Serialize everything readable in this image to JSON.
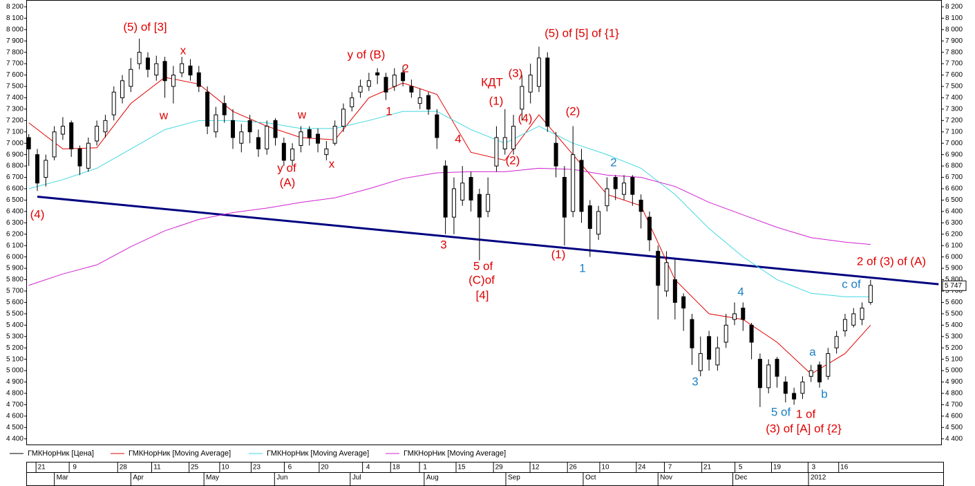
{
  "chart_data": {
    "type": "candlestick",
    "ylim": [
      4350,
      8260
    ],
    "xlim": [
      -0.3,
      107.3
    ],
    "yticks": [
      {
        "value": 8200,
        "label": "8 200"
      },
      {
        "value": 8100,
        "label": "8 100"
      },
      {
        "value": 8000,
        "label": "8 000"
      },
      {
        "value": 7900,
        "label": "7 900"
      },
      {
        "value": 7800,
        "label": "7 800"
      },
      {
        "value": 7700,
        "label": "7 700"
      },
      {
        "value": 7600,
        "label": "7 600"
      },
      {
        "value": 7500,
        "label": "7 500"
      },
      {
        "value": 7400,
        "label": "7 400"
      },
      {
        "value": 7300,
        "label": "7 300"
      },
      {
        "value": 7200,
        "label": "7 200"
      },
      {
        "value": 7100,
        "label": "7 100"
      },
      {
        "value": 7000,
        "label": "7 000"
      },
      {
        "value": 6900,
        "label": "6 900"
      },
      {
        "value": 6800,
        "label": "6 800"
      },
      {
        "value": 6700,
        "label": "6 700"
      },
      {
        "value": 6600,
        "label": "6 600"
      },
      {
        "value": 6500,
        "label": "6 500"
      },
      {
        "value": 6400,
        "label": "6 400"
      },
      {
        "value": 6300,
        "label": "6 300"
      },
      {
        "value": 6200,
        "label": "6 200"
      },
      {
        "value": 6100,
        "label": "6 100"
      },
      {
        "value": 6000,
        "label": "6 000"
      },
      {
        "value": 5900,
        "label": "5 900"
      },
      {
        "value": 5800,
        "label": "5 800"
      },
      {
        "value": 5700,
        "label": "5 700"
      },
      {
        "value": 5600,
        "label": "5 600"
      },
      {
        "value": 5500,
        "label": "5 500"
      },
      {
        "value": 5400,
        "label": "5 400"
      },
      {
        "value": 5300,
        "label": "5 300"
      },
      {
        "value": 5200,
        "label": "5 200"
      },
      {
        "value": 5100,
        "label": "5 100"
      },
      {
        "value": 5000,
        "label": "5 000"
      },
      {
        "value": 4900,
        "label": "4 900"
      },
      {
        "value": 4800,
        "label": "4 800"
      },
      {
        "value": 4700,
        "label": "4 700"
      },
      {
        "value": 4600,
        "label": "4 600"
      },
      {
        "value": 4500,
        "label": "4 500"
      },
      {
        "value": 4400,
        "label": "4 400"
      }
    ],
    "xticks": [
      {
        "value": 1.5,
        "label": "21"
      },
      {
        "value": 5.4,
        "label": "9"
      },
      {
        "value": 11.1,
        "label": "28"
      },
      {
        "value": 15.1,
        "label": "11"
      },
      {
        "value": 19.5,
        "label": "25"
      },
      {
        "value": 23.1,
        "label": "10"
      },
      {
        "value": 26.8,
        "label": "23"
      },
      {
        "value": 30.7,
        "label": "6"
      },
      {
        "value": 34.8,
        "label": "20"
      },
      {
        "value": 39.9,
        "label": "4"
      },
      {
        "value": 43.2,
        "label": "18"
      },
      {
        "value": 46.6,
        "label": "1"
      },
      {
        "value": 50.9,
        "label": "15"
      },
      {
        "value": 55.3,
        "label": "29"
      },
      {
        "value": 59.6,
        "label": "12"
      },
      {
        "value": 64.0,
        "label": "26"
      },
      {
        "value": 67.8,
        "label": "10"
      },
      {
        "value": 72.1,
        "label": "24"
      },
      {
        "value": 75.4,
        "label": "7"
      },
      {
        "value": 79.8,
        "label": "21"
      },
      {
        "value": 83.7,
        "label": "5"
      },
      {
        "value": 88.0,
        "label": "19"
      },
      {
        "value": 92.3,
        "label": "3"
      },
      {
        "value": 95.9,
        "label": "16"
      }
    ],
    "month_ticks": [
      {
        "value": 3.0,
        "label": "Mar"
      },
      {
        "value": 12.0,
        "label": "Apr"
      },
      {
        "value": 20.6,
        "label": "May"
      },
      {
        "value": 28.9,
        "label": "Jun"
      },
      {
        "value": 37.8,
        "label": "Jul"
      },
      {
        "value": 46.5,
        "label": "Aug"
      },
      {
        "value": 56.1,
        "label": "Sep"
      },
      {
        "value": 65.2,
        "label": "Oct"
      },
      {
        "value": 74.0,
        "label": "Nov"
      },
      {
        "value": 82.8,
        "label": "Dec"
      },
      {
        "value": 91.7,
        "label": "2012"
      }
    ],
    "series": [
      {
        "name": "ГМКНорНик [Цена]",
        "color": "#000000",
        "open": [
          7050,
          6900,
          6700,
          6880,
          7080,
          7180,
          6950,
          6780,
          7020,
          7100,
          7250,
          7400,
          7500,
          7700,
          7750,
          7600,
          7720,
          7500,
          7620,
          7680,
          7620,
          7450,
          7100,
          7350,
          7200,
          7000,
          7200,
          7050,
          6950,
          7200,
          7000,
          6850,
          6980,
          7120,
          7080,
          6900,
          7000,
          7150,
          7320,
          7450,
          7500,
          7620,
          7580,
          7500,
          7620,
          7500,
          7350,
          7420,
          7250,
          6800,
          6350,
          6500,
          6700,
          6550,
          6400,
          6800,
          6950,
          6950,
          7300,
          7450,
          7500,
          7750,
          7000,
          6700,
          6400,
          6850,
          6450,
          6200,
          6450,
          6700,
          6550,
          6700,
          6500,
          6350,
          6050,
          5700,
          5800,
          5650,
          5450,
          5000,
          5300,
          5050,
          5250,
          5450,
          5550,
          5400,
          5100,
          4850,
          5100,
          4900,
          4800,
          4800,
          4950,
          5050,
          4950,
          5200,
          5350,
          5400,
          5450,
          5600
        ],
        "high": [
          7080,
          6950,
          6900,
          7150,
          7230,
          7200,
          6980,
          7050,
          7200,
          7250,
          7500,
          7600,
          7750,
          7920,
          7800,
          7770,
          7760,
          7680,
          7760,
          7740,
          7680,
          7500,
          7320,
          7420,
          7300,
          7170,
          7250,
          7120,
          7200,
          7220,
          7050,
          7000,
          7150,
          7150,
          7130,
          7020,
          7200,
          7350,
          7450,
          7560,
          7620,
          7660,
          7620,
          7660,
          7680,
          7560,
          7480,
          7450,
          7300,
          6850,
          6700,
          6800,
          6750,
          6600,
          6700,
          7150,
          7300,
          7250,
          7600,
          7700,
          7850,
          7800,
          7100,
          6800,
          7150,
          6950,
          6500,
          6450,
          6700,
          6720,
          6720,
          6720,
          6550,
          6400,
          6100,
          6050,
          5980,
          5680,
          5500,
          5300,
          5350,
          5300,
          5500,
          5600,
          5600,
          5420,
          5150,
          5100,
          5120,
          4950,
          4850,
          4950,
          5050,
          5080,
          5200,
          5350,
          5500,
          5550,
          5600,
          5800
        ],
        "low": [
          6800,
          6580,
          6620,
          6850,
          7030,
          6880,
          6720,
          6750,
          6980,
          7050,
          7200,
          7350,
          7450,
          7650,
          7580,
          7550,
          7400,
          7350,
          7580,
          7550,
          7450,
          7080,
          7050,
          7180,
          6950,
          6920,
          7000,
          6880,
          6900,
          6980,
          6800,
          6800,
          6920,
          6980,
          6920,
          6850,
          6980,
          7100,
          7280,
          7400,
          7460,
          7520,
          7380,
          7460,
          7500,
          7400,
          7300,
          7250,
          6950,
          6200,
          6200,
          6450,
          6400,
          5970,
          6350,
          6750,
          6900,
          6900,
          7200,
          7350,
          7450,
          7100,
          6700,
          6100,
          6350,
          6300,
          6000,
          6150,
          6400,
          6500,
          6500,
          6450,
          6250,
          6050,
          5450,
          5650,
          5450,
          5350,
          5050,
          4950,
          5000,
          5000,
          5200,
          5400,
          5350,
          5100,
          4680,
          4800,
          4850,
          4720,
          4700,
          4750,
          4900,
          4850,
          4920,
          5150,
          5300,
          5380,
          5400,
          5580
        ],
        "close": [
          6950,
          6650,
          6850,
          7100,
          7150,
          6950,
          6800,
          7000,
          7150,
          7200,
          7450,
          7550,
          7650,
          7800,
          7650,
          7700,
          7550,
          7600,
          7700,
          7600,
          7500,
          7150,
          7250,
          7250,
          7050,
          7100,
          7100,
          6950,
          7150,
          7050,
          6850,
          6950,
          7100,
          7050,
          7000,
          6950,
          7150,
          7300,
          7400,
          7500,
          7550,
          7600,
          7450,
          7600,
          7550,
          7450,
          7400,
          7300,
          7050,
          6350,
          6600,
          6650,
          6500,
          6350,
          6550,
          7050,
          7050,
          7150,
          7500,
          7600,
          7750,
          7150,
          6800,
          6350,
          6900,
          6400,
          6250,
          6400,
          6600,
          6600,
          6650,
          6550,
          6400,
          6150,
          5750,
          5950,
          5600,
          5550,
          5200,
          5150,
          5100,
          5200,
          5400,
          5500,
          5450,
          5250,
          4850,
          5050,
          4950,
          4800,
          4750,
          4900,
          5000,
          4900,
          5150,
          5300,
          5450,
          5500,
          5550,
          5750
        ]
      },
      {
        "name": "ГМКНорНик [Moving Average]",
        "color": "#e00000",
        "x": [
          0,
          4,
          8,
          12,
          16,
          20,
          24,
          28,
          32,
          36,
          40,
          44,
          48,
          52,
          56,
          60,
          64,
          68,
          72,
          76,
          80,
          84,
          88,
          92,
          96,
          99
        ],
        "values": [
          7180,
          6950,
          6960,
          7350,
          7580,
          7520,
          7280,
          7150,
          7050,
          7030,
          7400,
          7530,
          7430,
          6920,
          6850,
          7250,
          6900,
          6550,
          6450,
          5800,
          5500,
          5450,
          5250,
          4970,
          5150,
          5400
        ]
      },
      {
        "name": "ГМКНорНик [Moving Average]",
        "color": "#40d8e0",
        "x": [
          0,
          4,
          8,
          12,
          16,
          20,
          24,
          28,
          32,
          36,
          40,
          44,
          48,
          52,
          56,
          60,
          64,
          68,
          72,
          76,
          80,
          84,
          88,
          92,
          96,
          99
        ],
        "values": [
          6600,
          6680,
          6780,
          6950,
          7120,
          7200,
          7200,
          7180,
          7130,
          7130,
          7200,
          7280,
          7280,
          7120,
          7000,
          7150,
          7000,
          6900,
          6780,
          6550,
          6250,
          6000,
          5800,
          5680,
          5650,
          5650
        ]
      },
      {
        "name": "ГМКНорНик [Moving Average]",
        "color": "#d020d0",
        "x": [
          0,
          4,
          8,
          12,
          16,
          20,
          24,
          28,
          32,
          36,
          40,
          44,
          48,
          52,
          56,
          60,
          64,
          68,
          72,
          76,
          80,
          84,
          88,
          92,
          96,
          99
        ],
        "values": [
          5750,
          5850,
          5930,
          6090,
          6230,
          6330,
          6390,
          6430,
          6480,
          6520,
          6600,
          6690,
          6740,
          6750,
          6750,
          6780,
          6770,
          6720,
          6700,
          6620,
          6480,
          6370,
          6260,
          6170,
          6130,
          6110
        ]
      }
    ],
    "trendline": {
      "color": "#000080",
      "x": [
        1,
        107
      ],
      "values": [
        6530,
        5760
      ]
    },
    "last_price": {
      "value": 5747,
      "label": "5 747"
    },
    "annotations": [
      {
        "text": "(5) of  [3]",
        "color": "#e00000"
      },
      {
        "text": "x",
        "color": "#e00000"
      },
      {
        "text": "w",
        "color": "#e00000"
      },
      {
        "text": "y of  (B)",
        "color": "#e00000"
      },
      {
        "text": "2",
        "color": "#e00000"
      },
      {
        "text": "1",
        "color": "#e00000"
      },
      {
        "text": "КДТ",
        "color": "#e00000"
      },
      {
        "text": "(3)",
        "color": "#e00000"
      },
      {
        "text": "(1)",
        "color": "#e00000"
      },
      {
        "text": "(4)",
        "color": "#e00000"
      },
      {
        "text": "(2)",
        "color": "#e00000"
      },
      {
        "text": "(5) of [5] of {1}",
        "color": "#e00000"
      },
      {
        "text": "(2)",
        "color": "#e00000"
      },
      {
        "text": "w",
        "color": "#e00000"
      },
      {
        "text": "y of",
        "color": "#e00000"
      },
      {
        "text": "(A)",
        "color": "#e00000"
      },
      {
        "text": "x",
        "color": "#e00000"
      },
      {
        "text": "(4)",
        "color": "#e00000"
      },
      {
        "text": "4",
        "color": "#e00000"
      },
      {
        "text": "3",
        "color": "#e00000"
      },
      {
        "text": "5 of",
        "color": "#e00000"
      },
      {
        "text": "(C)of",
        "color": "#e00000"
      },
      {
        "text": "[4]",
        "color": "#e00000"
      },
      {
        "text": "(1)",
        "color": "#e00000"
      },
      {
        "text": "2",
        "color": "#1a7fc1"
      },
      {
        "text": "1",
        "color": "#1a7fc1"
      },
      {
        "text": "4",
        "color": "#1a7fc1"
      },
      {
        "text": "3",
        "color": "#1a7fc1"
      },
      {
        "text": "a",
        "color": "#1a7fc1"
      },
      {
        "text": "b",
        "color": "#1a7fc1"
      },
      {
        "text": "5 of",
        "color": "#1a7fc1"
      },
      {
        "text": "1 of",
        "color": "#e00000"
      },
      {
        "text": "(3) of [A] of {2}",
        "color": "#e00000"
      },
      {
        "text": "2 of (3) of (A)",
        "color": "#e00000"
      },
      {
        "text": "c of",
        "color": "#1a7fc1"
      }
    ]
  }
}
